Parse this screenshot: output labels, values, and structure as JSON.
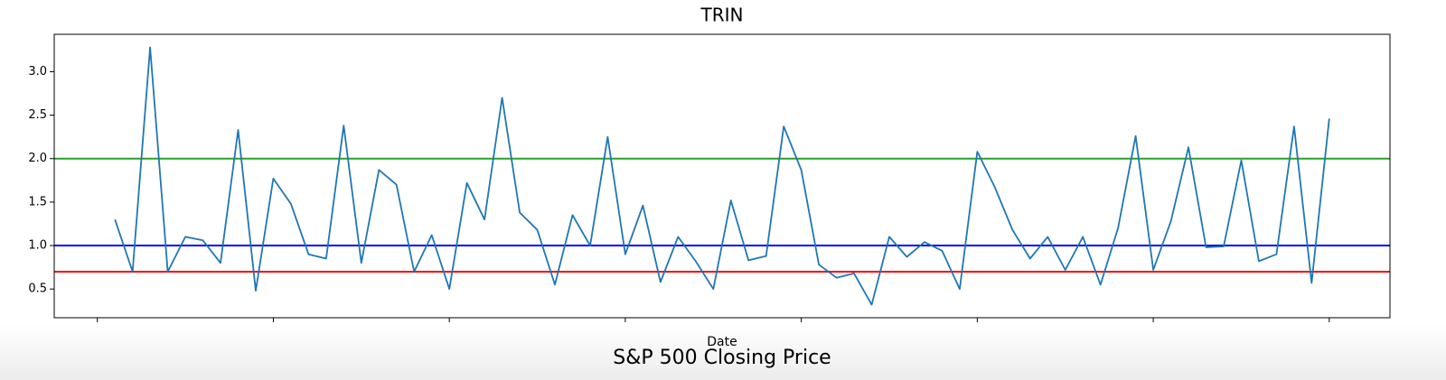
{
  "chart_data": {
    "type": "line",
    "title": "TRIN",
    "xlabel": "Date",
    "categories": [
      null,
      null,
      null,
      null,
      null,
      null,
      null,
      null,
      null,
      null,
      null,
      null,
      null,
      null,
      null,
      null,
      null,
      null,
      null,
      null,
      null,
      null,
      null,
      null,
      null,
      null,
      null,
      null,
      null,
      null,
      null,
      null,
      null,
      null,
      null,
      null,
      null,
      null,
      null,
      null,
      null,
      null,
      null,
      null,
      null,
      null,
      null,
      null,
      null,
      null,
      null,
      null,
      null,
      null,
      null,
      null,
      null,
      null,
      null,
      null,
      null,
      null,
      null,
      null,
      null,
      null,
      null,
      null,
      null,
      null
    ],
    "series": [
      {
        "color": "#1f77b4",
        "values": [
          1.3,
          0.7,
          3.28,
          0.7,
          1.1,
          1.06,
          0.8,
          2.33,
          0.48,
          1.77,
          1.48,
          0.9,
          0.85,
          2.38,
          0.8,
          1.87,
          1.7,
          0.7,
          1.12,
          0.5,
          1.72,
          1.3,
          2.7,
          1.38,
          1.18,
          0.55,
          1.35,
          1.0,
          2.25,
          0.9,
          1.46,
          0.58,
          1.1,
          0.82,
          0.5,
          1.52,
          0.83,
          0.88,
          2.37,
          1.87,
          0.78,
          0.63,
          0.68,
          0.32,
          1.1,
          0.87,
          1.04,
          0.94,
          0.5,
          2.08,
          1.67,
          1.18,
          0.85,
          1.1,
          0.72,
          1.1,
          0.55,
          1.2,
          2.26,
          0.72,
          1.28,
          2.13,
          0.98,
          0.99,
          1.98,
          0.82,
          0.9,
          2.37,
          0.57,
          2.46
        ]
      }
    ],
    "hlines": [
      {
        "value": 2.0,
        "color": "#2ca02c"
      },
      {
        "value": 1.0,
        "color": "#0000ff"
      },
      {
        "value": 0.7,
        "color": "#ff0000"
      }
    ],
    "ylim": [
      0.17,
      3.43
    ],
    "yticks": [
      {
        "value": 0.5,
        "label": "0.5"
      },
      {
        "value": 1.0,
        "label": "1.0"
      },
      {
        "value": 1.5,
        "label": "1.5"
      },
      {
        "value": 2.0,
        "label": "2.0"
      },
      {
        "value": 2.5,
        "label": "2.5"
      },
      {
        "value": 3.0,
        "label": "3.0"
      }
    ]
  },
  "next_chart_title": "S&P 500 Closing Price"
}
